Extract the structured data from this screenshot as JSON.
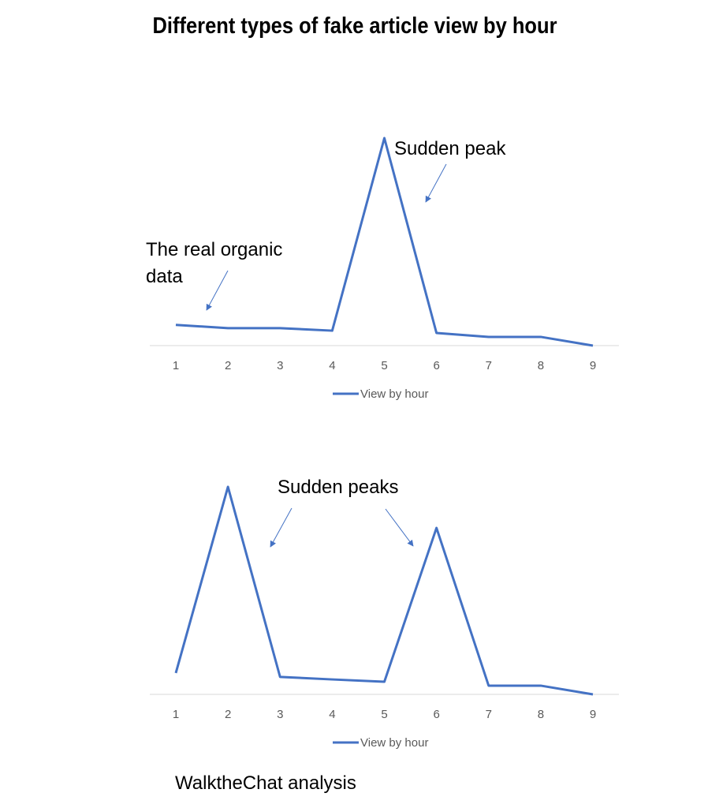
{
  "title": "Different types of fake article view by hour",
  "source": "WalktheChat analysis",
  "chart_data": [
    {
      "type": "line",
      "categories": [
        "1",
        "2",
        "3",
        "4",
        "5",
        "6",
        "7",
        "8",
        "9"
      ],
      "series": [
        {
          "name": "View by hour",
          "color": "#4472c4",
          "values": [
            10,
            8.4,
            8.4,
            7.2,
            100,
            6.1,
            4.2,
            4.2,
            0
          ]
        }
      ],
      "ylim": [
        0,
        100
      ],
      "annotations": [
        "Sudden peak",
        "The real organic",
        "data"
      ]
    },
    {
      "type": "line",
      "categories": [
        "1",
        "2",
        "3",
        "4",
        "5",
        "6",
        "7",
        "8",
        "9"
      ],
      "series": [
        {
          "name": "View by hour",
          "color": "#4472c4",
          "values": [
            10.3,
            100,
            8.4,
            7.2,
            6.1,
            80.2,
            4.2,
            4.2,
            0
          ]
        }
      ],
      "ylim": [
        0,
        100
      ],
      "annotations": [
        "Sudden peaks"
      ]
    }
  ]
}
